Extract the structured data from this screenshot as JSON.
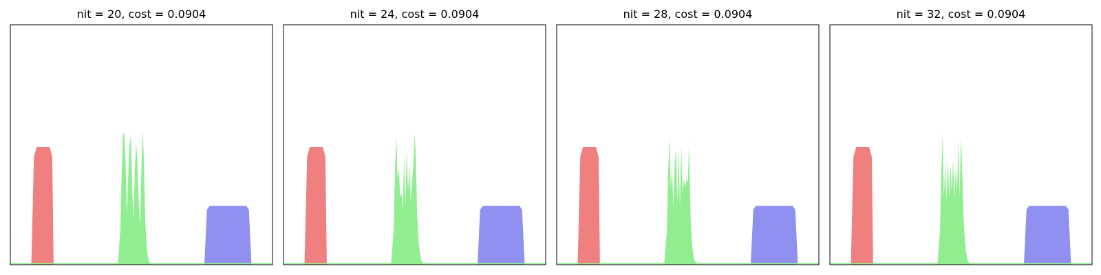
{
  "chart_data": [
    {
      "type": "area",
      "title": "nit = 20, cost = 0.0904",
      "grid": false,
      "xlim": [
        0,
        1
      ],
      "ylim": [
        0,
        1
      ],
      "series": [
        {
          "color": "#f08080",
          "x": [
            0.08,
            0.09,
            0.1,
            0.11,
            0.12,
            0.13,
            0.14,
            0.15,
            0.16,
            0.165
          ],
          "y": [
            0,
            0.45,
            0.49,
            0.49,
            0.49,
            0.49,
            0.49,
            0.49,
            0.45,
            0
          ]
        },
        {
          "color": "#90ee90",
          "x": [
            0.41,
            0.42,
            0.425,
            0.43,
            0.435,
            0.44,
            0.445,
            0.45,
            0.455,
            0.46,
            0.465,
            0.47,
            0.475,
            0.48,
            0.485,
            0.49,
            0.495,
            0.5,
            0.505,
            0.51,
            0.515,
            0.52,
            0.525,
            0.53,
            0.54
          ],
          "y": [
            0,
            0.15,
            0.4,
            0.55,
            0.54,
            0.42,
            0.2,
            0.38,
            0.5,
            0.54,
            0.32,
            0.18,
            0.4,
            0.51,
            0.42,
            0.25,
            0.16,
            0.4,
            0.56,
            0.42,
            0.18,
            0.08,
            0.03,
            0.01,
            0
          ]
        },
        {
          "color": "#9090f0",
          "x": [
            0.74,
            0.75,
            0.76,
            0.8,
            0.85,
            0.88,
            0.9,
            0.91,
            0.92
          ],
          "y": [
            0,
            0.23,
            0.245,
            0.245,
            0.245,
            0.245,
            0.245,
            0.23,
            0
          ]
        }
      ]
    },
    {
      "type": "area",
      "title": "nit = 24, cost = 0.0904",
      "grid": false,
      "xlim": [
        0,
        1
      ],
      "ylim": [
        0,
        1
      ],
      "series": [
        {
          "color": "#f08080",
          "x": [
            0.08,
            0.09,
            0.1,
            0.11,
            0.12,
            0.13,
            0.14,
            0.15,
            0.16,
            0.165
          ],
          "y": [
            0,
            0.45,
            0.49,
            0.49,
            0.49,
            0.49,
            0.49,
            0.49,
            0.45,
            0
          ]
        },
        {
          "color": "#90ee90",
          "x": [
            0.41,
            0.42,
            0.425,
            0.43,
            0.435,
            0.44,
            0.445,
            0.45,
            0.455,
            0.46,
            0.465,
            0.47,
            0.475,
            0.48,
            0.485,
            0.49,
            0.495,
            0.5,
            0.505,
            0.51,
            0.515,
            0.52,
            0.525,
            0.53,
            0.54
          ],
          "y": [
            0,
            0.14,
            0.38,
            0.54,
            0.36,
            0.4,
            0.28,
            0.3,
            0.22,
            0.45,
            0.25,
            0.48,
            0.3,
            0.42,
            0.26,
            0.35,
            0.4,
            0.55,
            0.44,
            0.2,
            0.1,
            0.05,
            0.02,
            0.01,
            0
          ]
        },
        {
          "color": "#9090f0",
          "x": [
            0.74,
            0.75,
            0.76,
            0.8,
            0.85,
            0.88,
            0.9,
            0.91,
            0.92
          ],
          "y": [
            0,
            0.23,
            0.245,
            0.245,
            0.245,
            0.245,
            0.245,
            0.23,
            0
          ]
        }
      ]
    },
    {
      "type": "area",
      "title": "nit = 28, cost = 0.0904",
      "grid": false,
      "xlim": [
        0,
        1
      ],
      "ylim": [
        0,
        1
      ],
      "series": [
        {
          "color": "#f08080",
          "x": [
            0.08,
            0.09,
            0.1,
            0.11,
            0.12,
            0.13,
            0.14,
            0.15,
            0.16,
            0.165
          ],
          "y": [
            0,
            0.45,
            0.49,
            0.49,
            0.49,
            0.49,
            0.49,
            0.49,
            0.45,
            0
          ]
        },
        {
          "color": "#90ee90",
          "x": [
            0.41,
            0.42,
            0.425,
            0.43,
            0.435,
            0.44,
            0.445,
            0.45,
            0.455,
            0.46,
            0.465,
            0.47,
            0.475,
            0.48,
            0.485,
            0.49,
            0.495,
            0.5,
            0.505,
            0.51,
            0.515,
            0.52,
            0.525,
            0.53,
            0.54
          ],
          "y": [
            0,
            0.14,
            0.38,
            0.53,
            0.32,
            0.4,
            0.24,
            0.42,
            0.48,
            0.26,
            0.47,
            0.24,
            0.5,
            0.3,
            0.36,
            0.32,
            0.36,
            0.34,
            0.51,
            0.22,
            0.1,
            0.05,
            0.02,
            0.01,
            0
          ]
        },
        {
          "color": "#9090f0",
          "x": [
            0.74,
            0.75,
            0.76,
            0.8,
            0.85,
            0.88,
            0.9,
            0.91,
            0.92
          ],
          "y": [
            0,
            0.23,
            0.245,
            0.245,
            0.245,
            0.245,
            0.245,
            0.23,
            0
          ]
        }
      ]
    },
    {
      "type": "area",
      "title": "nit = 32, cost = 0.0904",
      "grid": false,
      "xlim": [
        0,
        1
      ],
      "ylim": [
        0,
        1
      ],
      "series": [
        {
          "color": "#f08080",
          "x": [
            0.08,
            0.09,
            0.1,
            0.11,
            0.12,
            0.13,
            0.14,
            0.15,
            0.16,
            0.165
          ],
          "y": [
            0,
            0.45,
            0.49,
            0.49,
            0.49,
            0.49,
            0.49,
            0.49,
            0.45,
            0
          ]
        },
        {
          "color": "#90ee90",
          "x": [
            0.41,
            0.42,
            0.425,
            0.43,
            0.435,
            0.44,
            0.445,
            0.45,
            0.455,
            0.46,
            0.465,
            0.47,
            0.475,
            0.48,
            0.485,
            0.49,
            0.495,
            0.5,
            0.505,
            0.51,
            0.515,
            0.52,
            0.525,
            0.53,
            0.54
          ],
          "y": [
            0,
            0.14,
            0.38,
            0.54,
            0.28,
            0.42,
            0.26,
            0.45,
            0.28,
            0.42,
            0.3,
            0.44,
            0.27,
            0.4,
            0.3,
            0.52,
            0.28,
            0.54,
            0.38,
            0.2,
            0.1,
            0.05,
            0.02,
            0.01,
            0
          ]
        },
        {
          "color": "#9090f0",
          "x": [
            0.74,
            0.75,
            0.76,
            0.8,
            0.85,
            0.88,
            0.9,
            0.91,
            0.92
          ],
          "y": [
            0,
            0.23,
            0.245,
            0.245,
            0.245,
            0.245,
            0.245,
            0.23,
            0
          ]
        }
      ]
    }
  ]
}
